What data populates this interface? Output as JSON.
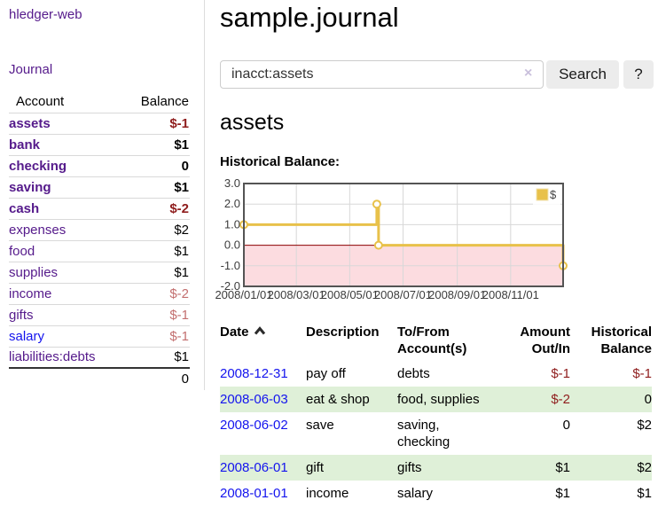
{
  "colors": {
    "accent_purple": "#551a8b",
    "link_blue": "#1414ee",
    "negative_red": "#8f1d1d",
    "negative_muted": "#c36f6f",
    "row_highlight_green": "#dff0d8",
    "chart_line_yellow": "#e8c14a",
    "chart_negative_region": "#fcdce0",
    "chart_zero_line": "#8b0000"
  },
  "sidebar": {
    "app_title": "hledger-web",
    "journal_link": "Journal",
    "accounts_table": {
      "headers": {
        "account": "Account",
        "balance": "Balance"
      },
      "rows": [
        {
          "label": "assets",
          "indent": 1,
          "bold": true,
          "balance": "$-1",
          "neg": true
        },
        {
          "label": "bank",
          "indent": 2,
          "bold": true,
          "balance": "$1"
        },
        {
          "label": "checking",
          "indent": 3,
          "bold": true,
          "balance": "0"
        },
        {
          "label": "saving",
          "indent": 3,
          "bold": true,
          "balance": "$1"
        },
        {
          "label": "cash",
          "indent": 2,
          "bold": true,
          "balance": "$-2",
          "neg": true
        },
        {
          "label": "expenses",
          "indent": 1,
          "balance": "$2"
        },
        {
          "label": "food",
          "indent": 2,
          "balance": "$1"
        },
        {
          "label": "supplies",
          "indent": 2,
          "balance": "$1"
        },
        {
          "label": "income",
          "indent": 1,
          "balance": "$-2",
          "negmuted": true
        },
        {
          "label": "gifts",
          "indent": 2,
          "balance": "$-1",
          "negmuted": true
        },
        {
          "label": "salary",
          "indent": 2,
          "blue": true,
          "balance": "$-1",
          "negmuted": true
        },
        {
          "label": "liabilities:debts",
          "indent": 1,
          "balance": "$1"
        }
      ],
      "total": "0"
    }
  },
  "main": {
    "title": "sample.journal",
    "search": {
      "value": "inacct:assets",
      "clear_icon": "×",
      "search_button": "Search",
      "help_button": "?"
    },
    "section_heading": "assets",
    "chart_label": "Historical Balance:",
    "register_table": {
      "headers": {
        "date": "Date",
        "description": "Description",
        "accounts": "To/From\nAccount(s)",
        "amount": "Amount\nOut/In",
        "balance": "Historical\nBalance"
      },
      "rows": [
        {
          "date": "2008-12-31",
          "description": "pay off",
          "accounts": "debts",
          "amount": "$-1",
          "amount_neg": true,
          "balance": "$-1",
          "balance_neg": true
        },
        {
          "date": "2008-06-03",
          "description": "eat & shop",
          "accounts": "food, supplies",
          "amount": "$-2",
          "amount_neg": true,
          "balance": "0"
        },
        {
          "date": "2008-06-02",
          "description": "save",
          "accounts": "saving,\nchecking",
          "amount": "0",
          "balance": "$2"
        },
        {
          "date": "2008-06-01",
          "description": "gift",
          "accounts": "gifts",
          "amount": "$1",
          "balance": "$2"
        },
        {
          "date": "2008-01-01",
          "description": "income",
          "accounts": "salary",
          "amount": "$1",
          "balance": "$1"
        }
      ]
    }
  },
  "chart_data": {
    "type": "line",
    "step": true,
    "title": "Historical Balance",
    "ylim": [
      -2.0,
      3.0
    ],
    "yticks": [
      3.0,
      2.0,
      1.0,
      0.0,
      -1.0,
      -2.0
    ],
    "xticks": [
      {
        "label": "2008/01/01",
        "pos": 0.0
      },
      {
        "label": "2008/03/01",
        "pos": 0.1644
      },
      {
        "label": "2008/05/01",
        "pos": 0.3315
      },
      {
        "label": "2008/07/01",
        "pos": 0.4986
      },
      {
        "label": "2008/09/01",
        "pos": 0.6685
      },
      {
        "label": "2008/11/01",
        "pos": 0.8356
      }
    ],
    "series": [
      {
        "name": "$",
        "color": "#e8c14a",
        "points": [
          {
            "date": "2008-01-01",
            "x": 0.0,
            "y": 1
          },
          {
            "date": "2008-06-01",
            "x": 0.4164,
            "y": 2
          },
          {
            "date": "2008-06-03",
            "x": 0.4219,
            "y": 0
          },
          {
            "date": "2008-12-31",
            "x": 1.0,
            "y": -1
          }
        ]
      }
    ],
    "legend": {
      "label": "$",
      "swatch_color": "#e8c14a",
      "position": "top-right"
    },
    "negative_region_color": "#fcdce0",
    "zero_line_color": "#8b0000",
    "grid": true
  }
}
